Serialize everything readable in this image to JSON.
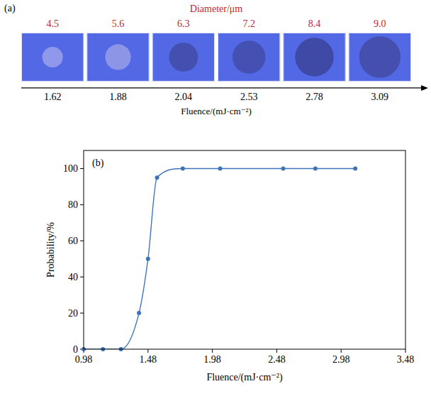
{
  "panel_a": {
    "letter": "(a)",
    "title": "Diameter/μm",
    "axis_label": "Fluence/(mJ·cm⁻²)",
    "images": [
      {
        "diameter": "4.5",
        "fluence": "1.62",
        "color": "#8f98ea"
      },
      {
        "diameter": "5.6",
        "fluence": "1.88",
        "color": "#8c95e6"
      },
      {
        "diameter": "6.3",
        "fluence": "2.04",
        "color": "#4450b0"
      },
      {
        "diameter": "7.2",
        "fluence": "2.53",
        "color": "#4551b2"
      },
      {
        "diameter": "8.4",
        "fluence": "2.78",
        "color": "#3f49a6"
      },
      {
        "diameter": "9.0",
        "fluence": "3.09",
        "color": "#444fae"
      }
    ]
  },
  "chart_data": {
    "type": "line",
    "letter": "(b)",
    "x_label": "Fluence/(mJ·cm⁻²)",
    "y_label": "Probability/%",
    "x": [
      0.98,
      1.13,
      1.27,
      1.41,
      1.48,
      1.55,
      1.75,
      2.04,
      2.53,
      2.78,
      3.09
    ],
    "series": [
      {
        "name": "Probability",
        "color": "#3e74b8",
        "marker": "circle",
        "line_style": "solid",
        "values": [
          0,
          0,
          0,
          20,
          50,
          95,
          100,
          100,
          100,
          100,
          100
        ]
      }
    ],
    "xlim": [
      0.98,
      3.48
    ],
    "xticks": [
      0.98,
      1.48,
      1.98,
      2.48,
      2.98,
      3.48
    ],
    "ylim": [
      0,
      110
    ],
    "yticks": [
      0,
      20,
      40,
      60,
      80,
      100
    ],
    "grid": false
  }
}
